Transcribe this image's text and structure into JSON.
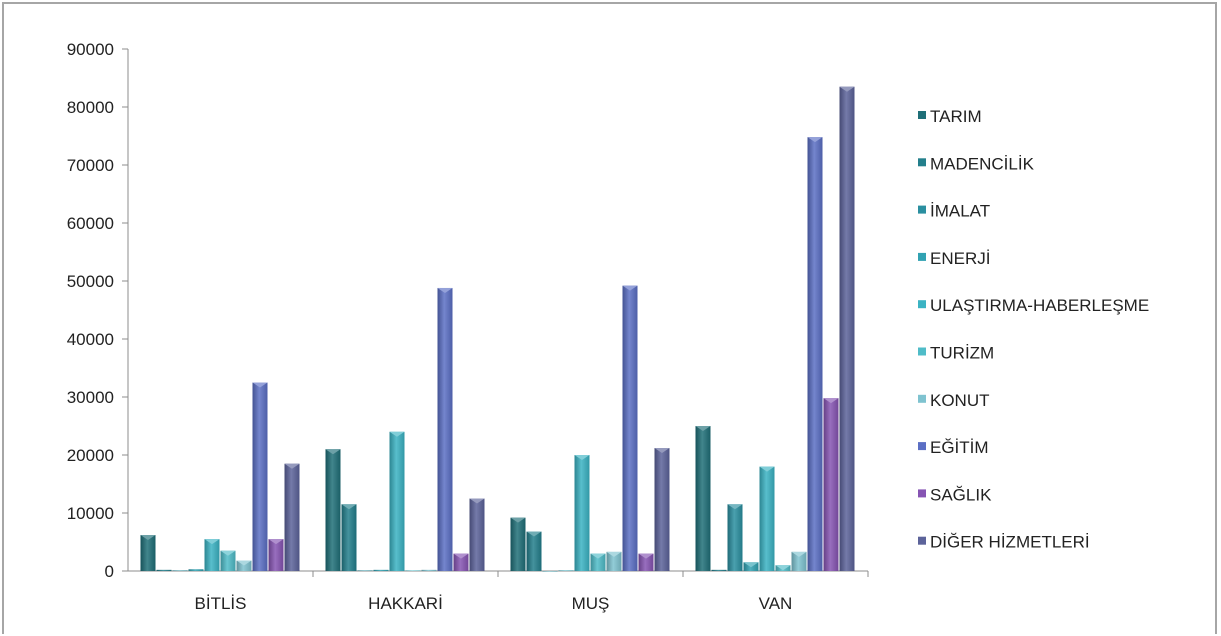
{
  "chart_data": {
    "type": "bar",
    "categories": [
      "BİTLİS",
      "HAKKARİ",
      "MUŞ",
      "VAN"
    ],
    "ylim": [
      0,
      90000
    ],
    "yticks": [
      0,
      10000,
      20000,
      30000,
      40000,
      50000,
      60000,
      70000,
      80000,
      90000
    ],
    "legend_position": "right",
    "grid": false,
    "series": [
      {
        "name": "TARIM",
        "color": "#1f6f78",
        "values": [
          6200,
          21000,
          9200,
          25000
        ]
      },
      {
        "name": "MADENCİLİK",
        "color": "#237f8c",
        "values": [
          200,
          11500,
          6800,
          200
        ]
      },
      {
        "name": "İMALAT",
        "color": "#2a8fa0",
        "values": [
          100,
          100,
          0,
          11500
        ]
      },
      {
        "name": "ENERJİ",
        "color": "#31a2b2",
        "values": [
          300,
          200,
          100,
          1500
        ]
      },
      {
        "name": "ULAŞTIRMA-HABERLEŞME",
        "color": "#3bb3c3",
        "values": [
          5500,
          24000,
          20000,
          18000
        ]
      },
      {
        "name": "TURİZM",
        "color": "#4fbcc8",
        "values": [
          3500,
          100,
          3000,
          1000
        ]
      },
      {
        "name": "KONUT",
        "color": "#7fc3d0",
        "values": [
          1800,
          200,
          3300,
          3300
        ]
      },
      {
        "name": "EĞİTİM",
        "color": "#5b6fc4",
        "values": [
          32500,
          48800,
          49200,
          74800
        ]
      },
      {
        "name": "SAĞLIK",
        "color": "#8654b3",
        "values": [
          5500,
          3000,
          3000,
          29800
        ]
      },
      {
        "name": "DİĞER HİZMETLERİ",
        "color": "#5c639a",
        "values": [
          18500,
          12500,
          21200,
          83500
        ]
      }
    ]
  }
}
